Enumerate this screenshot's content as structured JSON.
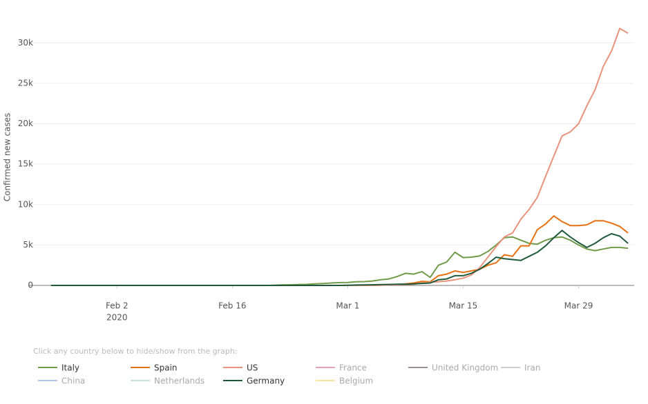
{
  "chart_data": {
    "type": "line",
    "y_label": "Confirmed new cases",
    "legend_hint": "Click any country below to hide/show from the graph:",
    "x": [
      "2020-01-25",
      "2020-01-26",
      "2020-01-27",
      "2020-01-28",
      "2020-01-29",
      "2020-01-30",
      "2020-01-31",
      "2020-02-01",
      "2020-02-02",
      "2020-02-03",
      "2020-02-04",
      "2020-02-05",
      "2020-02-06",
      "2020-02-07",
      "2020-02-08",
      "2020-02-09",
      "2020-02-10",
      "2020-02-11",
      "2020-02-12",
      "2020-02-13",
      "2020-02-14",
      "2020-02-15",
      "2020-02-16",
      "2020-02-17",
      "2020-02-18",
      "2020-02-19",
      "2020-02-20",
      "2020-02-21",
      "2020-02-22",
      "2020-02-23",
      "2020-02-24",
      "2020-02-25",
      "2020-02-26",
      "2020-02-27",
      "2020-02-28",
      "2020-02-29",
      "2020-03-01",
      "2020-03-02",
      "2020-03-03",
      "2020-03-04",
      "2020-03-05",
      "2020-03-06",
      "2020-03-07",
      "2020-03-08",
      "2020-03-09",
      "2020-03-10",
      "2020-03-11",
      "2020-03-12",
      "2020-03-13",
      "2020-03-14",
      "2020-03-15",
      "2020-03-16",
      "2020-03-17",
      "2020-03-18",
      "2020-03-19",
      "2020-03-20",
      "2020-03-21",
      "2020-03-22",
      "2020-03-23",
      "2020-03-24",
      "2020-03-25",
      "2020-03-26",
      "2020-03-27",
      "2020-03-28",
      "2020-03-29",
      "2020-03-30",
      "2020-03-31",
      "2020-04-01",
      "2020-04-02",
      "2020-04-03",
      "2020-04-04"
    ],
    "xlim": [
      "2020-01-23",
      "2020-04-05"
    ],
    "xticks": [
      {
        "value": "2020-02-02",
        "label": "Feb 2"
      },
      {
        "value": "2020-02-16",
        "label": "Feb 16"
      },
      {
        "value": "2020-03-01",
        "label": "Mar 1"
      },
      {
        "value": "2020-03-15",
        "label": "Mar 15"
      },
      {
        "value": "2020-03-29",
        "label": "Mar 29"
      }
    ],
    "x_year": "2020",
    "ylim": [
      0,
      32500
    ],
    "yticks": [
      0,
      {
        "value": 5000,
        "label": "5k"
      },
      {
        "value": 10000,
        "label": "10k"
      },
      {
        "value": 15000,
        "label": "15k"
      },
      {
        "value": 20000,
        "label": "20k"
      },
      {
        "value": 25000,
        "label": "25k"
      },
      {
        "value": 30000,
        "label": "30k"
      }
    ],
    "grid": true,
    "series": [
      {
        "name": "Italy",
        "color": "#6f9a47",
        "visible": true,
        "values": [
          0,
          0,
          0,
          0,
          0,
          0,
          0,
          0,
          0,
          0,
          0,
          0,
          0,
          0,
          0,
          0,
          0,
          0,
          0,
          0,
          0,
          0,
          0,
          0,
          0,
          0,
          0,
          20,
          60,
          80,
          100,
          130,
          200,
          230,
          300,
          350,
          370,
          450,
          470,
          550,
          700,
          800,
          1100,
          1500,
          1400,
          1700,
          1000,
          2500,
          2900,
          4100,
          3450,
          3500,
          3650,
          4200,
          5000,
          5900,
          6000,
          5600,
          5200,
          5100,
          5600,
          5900,
          6000,
          5600,
          5000,
          4500,
          4300,
          4500,
          4700,
          4700,
          4600
        ]
      },
      {
        "name": "Spain",
        "color": "#e8700f",
        "visible": true,
        "values": [
          0,
          0,
          0,
          0,
          0,
          0,
          0,
          0,
          0,
          0,
          0,
          0,
          0,
          0,
          0,
          0,
          0,
          0,
          0,
          0,
          0,
          0,
          0,
          0,
          0,
          0,
          0,
          0,
          0,
          0,
          0,
          0,
          0,
          0,
          0,
          0,
          0,
          0,
          20,
          20,
          30,
          100,
          100,
          200,
          300,
          500,
          450,
          1200,
          1400,
          1800,
          1600,
          1800,
          2000,
          2500,
          2800,
          3800,
          3600,
          4900,
          4900,
          6900,
          7600,
          8600,
          7900,
          7400,
          7400,
          7500,
          8000,
          8000,
          7700,
          7300,
          6500
        ]
      },
      {
        "name": "US",
        "color": "#e9927c",
        "visible": true,
        "values": [
          0,
          0,
          0,
          0,
          0,
          0,
          0,
          0,
          0,
          0,
          0,
          0,
          0,
          0,
          0,
          0,
          0,
          0,
          0,
          0,
          0,
          0,
          0,
          0,
          0,
          0,
          0,
          0,
          0,
          0,
          0,
          0,
          0,
          0,
          0,
          0,
          0,
          0,
          0,
          0,
          20,
          50,
          80,
          100,
          150,
          300,
          400,
          450,
          550,
          700,
          900,
          1300,
          2200,
          3500,
          4800,
          6000,
          6500,
          8200,
          9400,
          10900,
          13500,
          16000,
          18500,
          19000,
          20000,
          22200,
          24200,
          27100,
          29000,
          31800,
          31200
        ]
      },
      {
        "name": "France",
        "color": "#e3a0c0",
        "visible": false
      },
      {
        "name": "United Kingdom",
        "color": "#9c8c9c",
        "visible": false
      },
      {
        "name": "Iran",
        "color": "#cfcfcf",
        "visible": false
      },
      {
        "name": "China",
        "color": "#a6c8f0",
        "visible": false
      },
      {
        "name": "Netherlands",
        "color": "#c2e2da",
        "visible": false
      },
      {
        "name": "Germany",
        "color": "#1e5a3a",
        "visible": true,
        "values": [
          0,
          0,
          0,
          0,
          0,
          0,
          0,
          0,
          0,
          0,
          0,
          0,
          0,
          0,
          0,
          0,
          0,
          0,
          0,
          0,
          0,
          0,
          0,
          0,
          0,
          0,
          0,
          0,
          0,
          0,
          0,
          0,
          0,
          0,
          0,
          0,
          20,
          50,
          60,
          80,
          100,
          120,
          150,
          150,
          200,
          250,
          300,
          700,
          800,
          1200,
          1200,
          1500,
          2000,
          2700,
          3500,
          3300,
          3200,
          3100,
          3600,
          4100,
          4900,
          5900,
          6800,
          6000,
          5300,
          4700,
          5200,
          5900,
          6400,
          6100,
          5200
        ]
      },
      {
        "name": "Belgium",
        "color": "#f4e49c",
        "visible": false
      }
    ]
  }
}
